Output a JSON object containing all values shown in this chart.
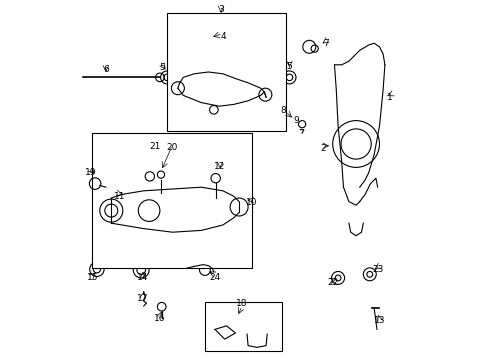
{
  "bg_color": "#ffffff",
  "line_color": "#000000",
  "figsize": [
    4.89,
    3.6
  ],
  "dpi": 100,
  "title": ""
}
